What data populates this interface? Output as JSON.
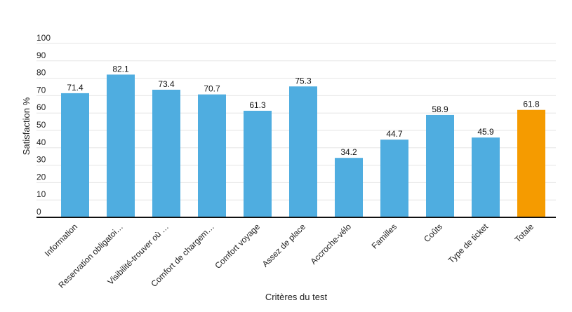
{
  "chart_data": {
    "type": "bar",
    "categories": [
      "Information",
      "Reservation obligatoi…",
      "Visibilité-trouver où …",
      "Comfort de chargem…",
      "Comfort voyage",
      "Assez de place",
      "Accroche-vélo",
      "Familles",
      "Coûts",
      "Type de ticket",
      "Totale"
    ],
    "values": [
      71.4,
      82.1,
      73.4,
      70.7,
      61.3,
      75.3,
      34.2,
      44.7,
      58.9,
      45.9,
      61.8
    ],
    "colors": [
      "#4fade0",
      "#4fade0",
      "#4fade0",
      "#4fade0",
      "#4fade0",
      "#4fade0",
      "#4fade0",
      "#4fade0",
      "#4fade0",
      "#4fade0",
      "#f59b00"
    ],
    "xlabel": "Critères du test",
    "ylabel": "Satisfaction %",
    "ylim": [
      0,
      100
    ],
    "yticks": [
      0,
      10,
      20,
      30,
      40,
      50,
      60,
      70,
      80,
      90,
      100
    ],
    "grid": true
  }
}
